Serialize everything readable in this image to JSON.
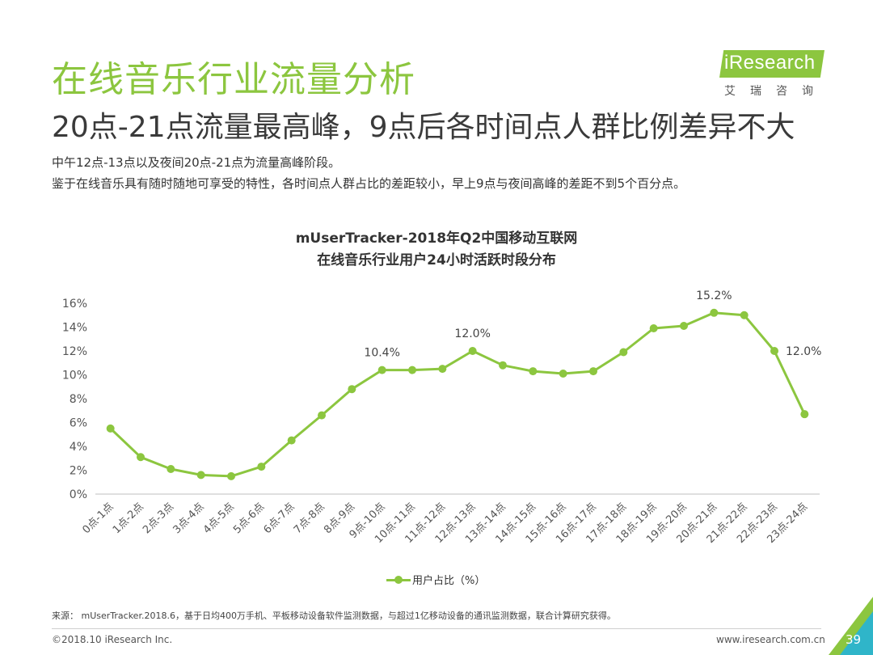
{
  "header": {
    "title": "在线音乐行业流量分析",
    "subtitle": "20点-21点流量最高峰，9点后各时间点人群比例差异不大",
    "desc1": "中午12点-13点以及夜间20点-21点为流量高峰阶段。",
    "desc2": "鉴于在线音乐具有随时随地可享受的特性，各时间点人群占比的差距较小，早上9点与夜间高峰的差距不到5个百分点。"
  },
  "logo": {
    "text": "iResearch",
    "cn": "艾瑞咨询"
  },
  "chart_data": {
    "type": "line",
    "title_line1": "mUserTracker-2018年Q2中国移动互联网",
    "title_line2": "在线音乐行业用户24小时活跃时段分布",
    "categories": [
      "0点-1点",
      "1点-2点",
      "2点-3点",
      "3点-4点",
      "4点-5点",
      "5点-6点",
      "6点-7点",
      "7点-8点",
      "8点-9点",
      "9点-10点",
      "10点-11点",
      "11点-12点",
      "12点-13点",
      "13点-14点",
      "14点-15点",
      "15点-16点",
      "16点-17点",
      "17点-18点",
      "18点-19点",
      "19点-20点",
      "20点-21点",
      "21点-22点",
      "22点-23点",
      "23点-24点"
    ],
    "series": [
      {
        "name": "用户占比（%）",
        "color": "#8cc63f",
        "values": [
          5.5,
          3.1,
          2.1,
          1.6,
          1.5,
          2.3,
          4.5,
          6.6,
          8.8,
          10.4,
          10.4,
          10.5,
          12.0,
          10.8,
          10.3,
          10.1,
          10.3,
          11.9,
          13.9,
          14.1,
          15.2,
          15.0,
          12.0,
          6.7
        ]
      }
    ],
    "y_ticks": [
      "0%",
      "2%",
      "4%",
      "6%",
      "8%",
      "10%",
      "12%",
      "14%",
      "16%"
    ],
    "ylim": [
      0,
      16
    ],
    "data_labels": [
      {
        "index": 9,
        "text": "10.4%"
      },
      {
        "index": 12,
        "text": "12.0%"
      },
      {
        "index": 20,
        "text": "15.2%"
      },
      {
        "index": 22,
        "text": "12.0%"
      }
    ],
    "legend_position": "bottom",
    "grid": false
  },
  "footer": {
    "source": "来源： mUserTracker.2018.6，基于日均400万手机、平板移动设备软件监测数据，与超过1亿移动设备的通讯监测数据，联合计算研究获得。",
    "copyright": "©2018.10 iResearch Inc.",
    "website": "www.iresearch.com.cn",
    "page": "39"
  }
}
